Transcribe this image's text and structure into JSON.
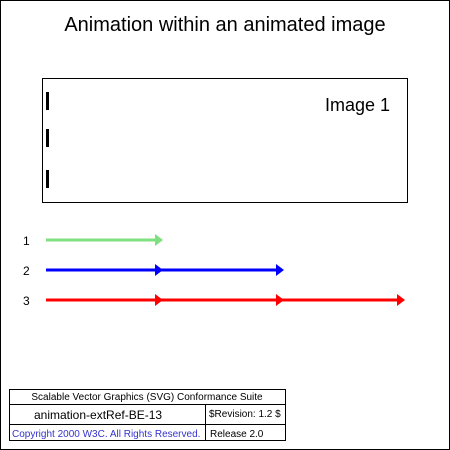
{
  "page": {
    "title": "Animation within an animated image"
  },
  "image_box": {
    "label": "Image 1"
  },
  "rows": [
    {
      "label": "1",
      "color": "#7ee07e",
      "segments": 1
    },
    {
      "label": "2",
      "color": "#0000ff",
      "segments": 2
    },
    {
      "label": "3",
      "color": "#ff0000",
      "segments": 3
    }
  ],
  "footer": {
    "suite": "Scalable Vector Graphics (SVG) Conformance Suite",
    "test_name": "animation-extRef-BE-13",
    "revision": "$Revision: 1.2 $",
    "copyright": "Copyright 2000 W3C. All Rights Reserved.",
    "release": "Release 2.0"
  },
  "colors": {
    "border": "#000000",
    "copyright": "#3333cc"
  }
}
